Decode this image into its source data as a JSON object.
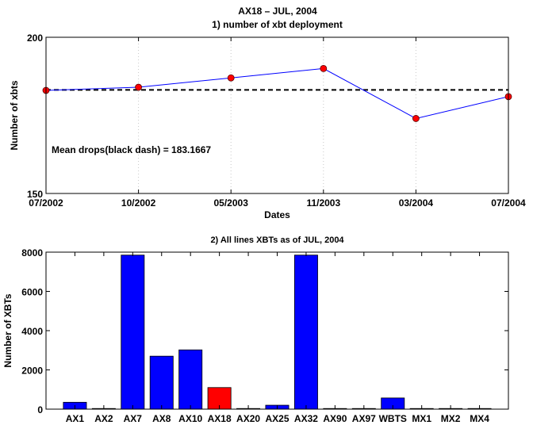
{
  "figure_title": "AX18 – JUL, 2004",
  "chart_data": [
    {
      "type": "line",
      "title": "1) number of xbt deployment",
      "xlabel": "Dates",
      "ylabel": "Number of xbts",
      "x_tick_labels": [
        "07/2002",
        "10/2002",
        "05/2003",
        "11/2003",
        "03/2004",
        "07/2004"
      ],
      "ylim": [
        150,
        200
      ],
      "y_ticks": [
        150,
        200
      ],
      "series": [
        {
          "values": [
            183,
            184,
            187,
            190,
            174,
            181
          ],
          "color": "#0000ff",
          "marker_color": "#ff0000"
        }
      ],
      "mean_line": 183.1667,
      "annotation": "Mean drops(black dash) = 183.1667",
      "grid_x": true
    },
    {
      "type": "bar",
      "title": "2) All lines XBTs as of JUL, 2004",
      "ylabel": "Number of XBTs",
      "categories": [
        "AX1",
        "AX2",
        "AX7",
        "AX8",
        "AX10",
        "AX18",
        "AX20",
        "AX25",
        "AX32",
        "AX90",
        "AX97",
        "WBTS",
        "MX1",
        "MX2",
        "MX4"
      ],
      "values": [
        350,
        0,
        7850,
        2700,
        3020,
        1100,
        0,
        200,
        7850,
        0,
        0,
        570,
        0,
        0,
        0
      ],
      "highlight": "AX18",
      "bar_color": "#0000ff",
      "highlight_color": "#ff0000",
      "ylim": [
        0,
        8000
      ],
      "y_ticks": [
        0,
        2000,
        4000,
        6000,
        8000
      ]
    }
  ]
}
